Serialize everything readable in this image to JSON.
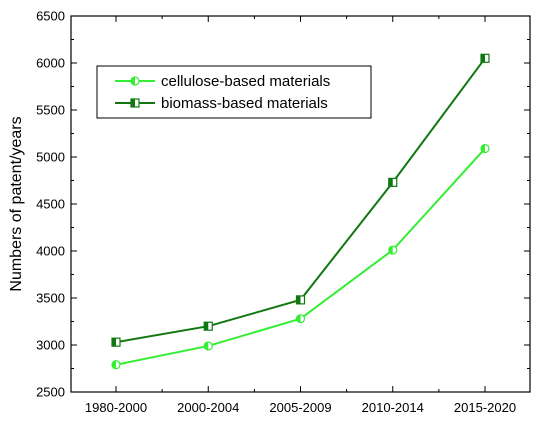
{
  "chart_data": {
    "type": "line",
    "title": "",
    "xlabel": "",
    "ylabel": "Numbers of patent/years",
    "categories": [
      "1980-2000",
      "2000-2004",
      "2005-2009",
      "2010-2014",
      "2015-2020"
    ],
    "ylim": [
      2500,
      6500
    ],
    "yticks": [
      2500,
      3000,
      3500,
      4000,
      4500,
      5000,
      5500,
      6000,
      6500
    ],
    "grid": false,
    "legend_position": "top-left",
    "series": [
      {
        "name": "cellulose-based materials",
        "color": "#33ee33",
        "marker": "half-filled-circle",
        "values": [
          2790,
          2990,
          3280,
          4010,
          5090
        ]
      },
      {
        "name": "biomass-based materials",
        "color": "#117711",
        "marker": "half-filled-square",
        "values": [
          3030,
          3200,
          3480,
          4730,
          6050
        ]
      }
    ]
  }
}
